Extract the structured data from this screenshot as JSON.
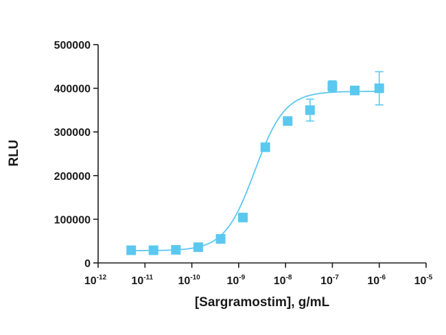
{
  "chart_data": {
    "type": "scatter",
    "xlabel": "[Sargramostim], g/mL",
    "ylabel": "RLU",
    "x_scale": "log10",
    "xlim": [
      1e-12,
      1e-05
    ],
    "ylim": [
      0,
      500000
    ],
    "grid": false,
    "legend": "none",
    "x_ticks": [
      {
        "base": "10",
        "exp": "-12"
      },
      {
        "base": "10",
        "exp": "-11"
      },
      {
        "base": "10",
        "exp": "-10"
      },
      {
        "base": "10",
        "exp": "-9"
      },
      {
        "base": "10",
        "exp": "-8"
      },
      {
        "base": "10",
        "exp": "-7"
      },
      {
        "base": "10",
        "exp": "-6"
      },
      {
        "base": "10",
        "exp": "-5"
      }
    ],
    "y_ticks": [
      "0",
      "100000",
      "200000",
      "300000",
      "400000",
      "500000"
    ],
    "y_tick_values": [
      0,
      100000,
      200000,
      300000,
      400000,
      500000
    ],
    "series": [
      {
        "color": "#5bc8ef",
        "points": [
          {
            "x": 5.08e-12,
            "y": 29000,
            "err": 2000
          },
          {
            "x": 1.52e-11,
            "y": 29000,
            "err": 2000
          },
          {
            "x": 4.57e-11,
            "y": 30000,
            "err": 2000
          },
          {
            "x": 1.37e-10,
            "y": 36000,
            "err": 2000
          },
          {
            "x": 4.12e-10,
            "y": 55000,
            "err": 3000
          },
          {
            "x": 1.23e-09,
            "y": 104000,
            "err": 4000
          },
          {
            "x": 3.7e-09,
            "y": 265000,
            "err": 5000
          },
          {
            "x": 1.11e-08,
            "y": 325000,
            "err": 5000
          },
          {
            "x": 3.33e-08,
            "y": 350000,
            "err": 25000
          },
          {
            "x": 1e-07,
            "y": 405000,
            "err": 12000
          },
          {
            "x": 3e-07,
            "y": 395000,
            "err": 5000
          },
          {
            "x": 1e-06,
            "y": 400000,
            "err": 38000
          }
        ],
        "fit": {
          "bottom": 28000,
          "top": 393000,
          "ec50": 2.2e-09,
          "hill": 1.35
        }
      }
    ]
  }
}
